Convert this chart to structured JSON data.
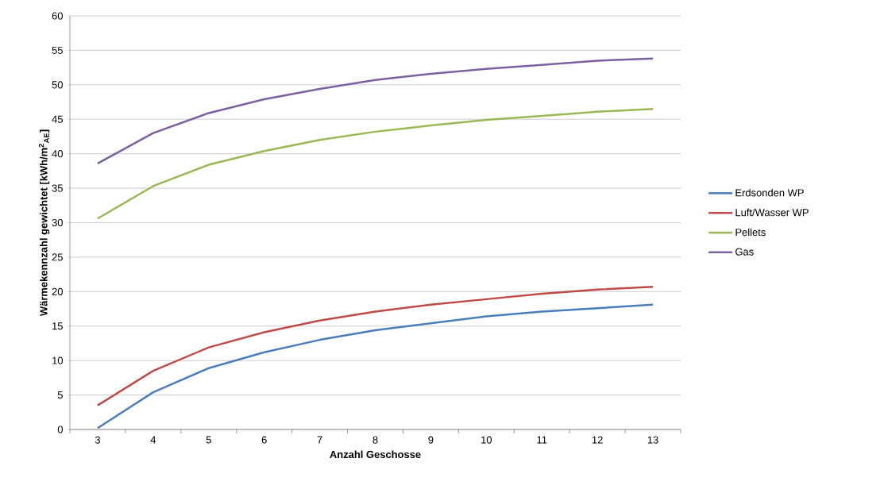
{
  "chart_data": {
    "type": "line",
    "xlabel": "Anzahl Geschosse",
    "ylabel": "Wärmekennzahl gewichtet [kWh/m$^{2}$$_{AE}$]",
    "categories": [
      "3",
      "4",
      "5",
      "6",
      "7",
      "8",
      "9",
      "10",
      "11",
      "12",
      "13"
    ],
    "series": [
      {
        "name": "Erdsonden WP",
        "color": "#4a7ebb",
        "values": [
          0.2,
          5.4,
          8.9,
          11.2,
          13.0,
          14.4,
          15.4,
          16.4,
          17.1,
          17.6,
          18.1
        ]
      },
      {
        "name": "Luft/Wasser WP",
        "color": "#be4b48",
        "values": [
          3.5,
          8.5,
          11.9,
          14.1,
          15.8,
          17.1,
          18.1,
          18.9,
          19.7,
          20.3,
          20.7
        ]
      },
      {
        "name": "Pellets",
        "color": "#98b954",
        "values": [
          30.6,
          35.3,
          38.4,
          40.4,
          42.0,
          43.2,
          44.1,
          44.9,
          45.5,
          46.1,
          46.5
        ]
      },
      {
        "name": "Gas",
        "color": "#7d60a0",
        "values": [
          38.6,
          43.0,
          45.9,
          47.9,
          49.4,
          50.7,
          51.6,
          52.3,
          52.9,
          53.5,
          53.8
        ]
      }
    ],
    "ylim": [
      0,
      60
    ],
    "yticks": [
      0,
      5,
      10,
      15,
      20,
      25,
      30,
      35,
      40,
      45,
      50,
      55,
      60
    ],
    "grid": "y",
    "legend": "right",
    "marker": "none",
    "line_style": "solid"
  }
}
